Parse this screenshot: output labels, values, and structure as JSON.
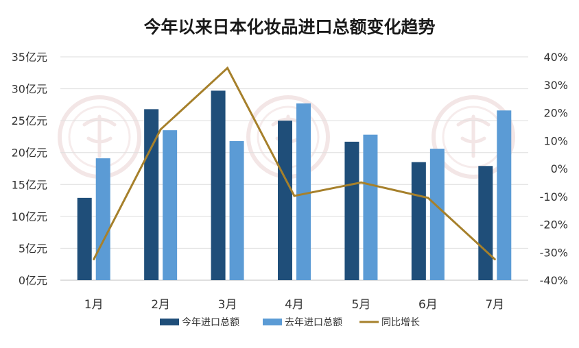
{
  "chart_data": {
    "type": "bar",
    "title": "今年以来日本化妆品进口总额变化趋势",
    "categories": [
      "1月",
      "2月",
      "3月",
      "4月",
      "5月",
      "6月",
      "7月"
    ],
    "y_left": {
      "min": 0,
      "max": 35,
      "step": 5,
      "tick_labels": [
        "0亿元",
        "5亿元",
        "10亿元",
        "15亿元",
        "20亿元",
        "25亿元",
        "30亿元",
        "35亿元"
      ]
    },
    "y_right": {
      "min": -40,
      "max": 40,
      "step": 10,
      "tick_labels": [
        "-40%",
        "-30%",
        "-20%",
        "-10%",
        "0%",
        "10%",
        "20%",
        "30%",
        "40%"
      ]
    },
    "series": [
      {
        "name": "今年进口总额",
        "type": "bar",
        "axis": "left",
        "color": "#1f4e79",
        "values": [
          12.9,
          26.8,
          29.7,
          25.0,
          21.7,
          18.5,
          17.9
        ]
      },
      {
        "name": "去年进口总额",
        "type": "bar",
        "axis": "left",
        "color": "#5b9bd5",
        "values": [
          19.1,
          23.5,
          21.8,
          27.7,
          22.8,
          20.6,
          26.6
        ]
      },
      {
        "name": "同比增长",
        "type": "line",
        "axis": "right",
        "color": "#a6802b",
        "values": [
          -32.5,
          14.0,
          36.0,
          -9.8,
          -5.0,
          -10.5,
          -32.5
        ]
      }
    ],
    "grid": true,
    "legend_position": "bottom"
  }
}
